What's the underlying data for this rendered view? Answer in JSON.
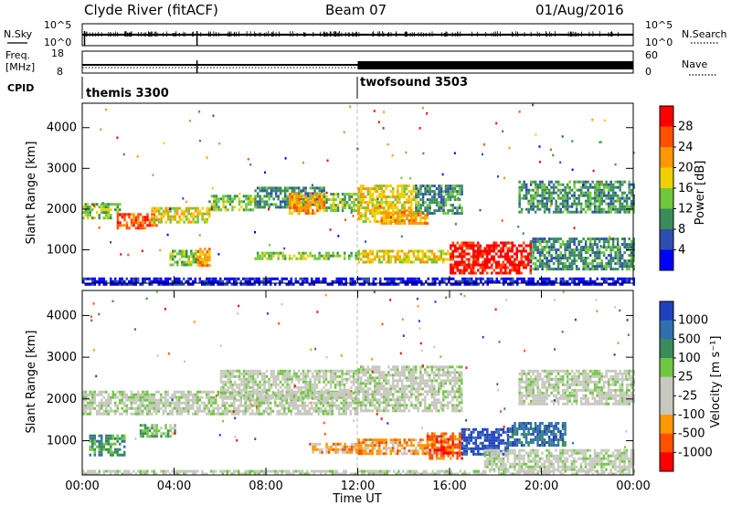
{
  "header": {
    "station": "Clyde River (fitACF)",
    "beam": "Beam 07",
    "date": "01/Aug/2016"
  },
  "top_panels": {
    "nsky_label": "N.Sky",
    "nsky_ticks": [
      "10^5",
      "10^0"
    ],
    "nsearch_label": "N.Search",
    "nsearch_ticks": [
      "10^5",
      "10^0"
    ],
    "freq_label": "Freq.",
    "freq_unit": "[MHz]",
    "freq_ticks": [
      "18",
      "8"
    ],
    "nave_label": "Nave",
    "nave_ticks": [
      "60",
      "0"
    ],
    "cpid_label": "CPID",
    "cpid_segments": [
      {
        "name": "themis 3300",
        "start_hour": 0,
        "end_hour": 12
      },
      {
        "name": "twofsound 3503",
        "start_hour": 12,
        "end_hour": 24
      }
    ]
  },
  "chart_data": [
    {
      "type": "heatmap",
      "title": "",
      "xlabel": "",
      "ylabel": "Slant Range [km]",
      "ylim": [
        180,
        4600
      ],
      "yticks": [
        "1000",
        "2000",
        "3000",
        "4000"
      ],
      "colorbar_label": "Power [dB]",
      "colorbar_ticks": [
        "4",
        "8",
        "12",
        "16",
        "20",
        "24",
        "28"
      ],
      "colors": [
        "#0000ff",
        "#2e4fb0",
        "#3a8c5a",
        "#6fc83a",
        "#f0d000",
        "#ff9800",
        "#ff5000",
        "#ff0000"
      ],
      "regions": [
        {
          "t0": 0.0,
          "t1": 1.6,
          "r0": 1750,
          "r1": 2150,
          "level": 3
        },
        {
          "t0": 1.5,
          "t1": 3.2,
          "r0": 1550,
          "r1": 1900,
          "level": 6
        },
        {
          "t0": 3.0,
          "t1": 5.5,
          "r0": 1650,
          "r1": 2050,
          "level": 4
        },
        {
          "t0": 5.5,
          "t1": 7.5,
          "r0": 1950,
          "r1": 2350,
          "level": 3
        },
        {
          "t0": 7.5,
          "t1": 10.5,
          "r0": 2050,
          "r1": 2550,
          "level": 2
        },
        {
          "t0": 10.5,
          "t1": 12.0,
          "r0": 1950,
          "r1": 2400,
          "level": 3
        },
        {
          "t0": 12.0,
          "t1": 14.5,
          "r0": 1700,
          "r1": 2600,
          "level": 4
        },
        {
          "t0": 13.0,
          "t1": 15.0,
          "r0": 1650,
          "r1": 1950,
          "level": 5
        },
        {
          "t0": 9.0,
          "t1": 10.5,
          "r0": 1900,
          "r1": 2400,
          "level": 5
        },
        {
          "t0": 14.5,
          "t1": 16.5,
          "r0": 1900,
          "r1": 2600,
          "level": 2
        },
        {
          "t0": 3.8,
          "t1": 5.2,
          "r0": 650,
          "r1": 1000,
          "level": 3
        },
        {
          "t0": 5.0,
          "t1": 5.5,
          "r0": 600,
          "r1": 1050,
          "level": 5
        },
        {
          "t0": 7.5,
          "t1": 12.0,
          "r0": 750,
          "r1": 950,
          "level": 3
        },
        {
          "t0": 12.0,
          "t1": 16.0,
          "r0": 700,
          "r1": 1000,
          "level": 4
        },
        {
          "t0": 16.0,
          "t1": 19.5,
          "r0": 400,
          "r1": 1200,
          "level": 7
        },
        {
          "t0": 19.5,
          "t1": 24.0,
          "r0": 500,
          "r1": 1300,
          "level": 2
        },
        {
          "t0": 19.0,
          "t1": 24.0,
          "r0": 1900,
          "r1": 2700,
          "level": 2
        },
        {
          "t0": 0.0,
          "t1": 24.0,
          "r0": 180,
          "r1": 320,
          "level": 0
        }
      ]
    },
    {
      "type": "heatmap",
      "title": "",
      "xlabel": "Time UT",
      "ylabel": "Slant Range [km]",
      "ylim": [
        180,
        4600
      ],
      "yticks": [
        "1000",
        "2000",
        "3000",
        "4000"
      ],
      "xticks": [
        "00:00",
        "04:00",
        "08:00",
        "12:00",
        "16:00",
        "20:00",
        "00:00"
      ],
      "colorbar_label": "Velocity [m s⁻¹]",
      "colorbar_ticks": [
        "1000",
        "500",
        "100",
        "25",
        "-25",
        "-100",
        "-500",
        "-1000"
      ],
      "colors": [
        "#2040c0",
        "#3070b0",
        "#3a8c5a",
        "#70c840",
        "#c8c8c0",
        "#c8c8c0",
        "#ff9800",
        "#ff5000",
        "#ff0000"
      ],
      "regions": [
        {
          "t0": 0.0,
          "t1": 12.0,
          "r0": 1650,
          "r1": 2200,
          "level": 4
        },
        {
          "t0": 6.0,
          "t1": 12.0,
          "r0": 2000,
          "r1": 2700,
          "level": 4
        },
        {
          "t0": 12.0,
          "t1": 16.5,
          "r0": 1700,
          "r1": 2800,
          "level": 4
        },
        {
          "t0": 19.0,
          "t1": 24.0,
          "r0": 1900,
          "r1": 2700,
          "level": 4
        },
        {
          "t0": 0.3,
          "t1": 1.8,
          "r0": 650,
          "r1": 1150,
          "level": 2
        },
        {
          "t0": 2.5,
          "t1": 4.0,
          "r0": 1100,
          "r1": 1400,
          "level": 3
        },
        {
          "t0": 10.0,
          "t1": 12.0,
          "r0": 750,
          "r1": 950,
          "level": 6
        },
        {
          "t0": 12.0,
          "t1": 16.0,
          "r0": 700,
          "r1": 1050,
          "level": 6
        },
        {
          "t0": 15.0,
          "t1": 16.5,
          "r0": 600,
          "r1": 1200,
          "level": 7
        },
        {
          "t0": 16.5,
          "t1": 18.5,
          "r0": 700,
          "r1": 1300,
          "level": 0
        },
        {
          "t0": 18.5,
          "t1": 21.0,
          "r0": 900,
          "r1": 1450,
          "level": 1
        },
        {
          "t0": 17.5,
          "t1": 24.0,
          "r0": 300,
          "r1": 800,
          "level": 4
        },
        {
          "t0": 0.0,
          "t1": 24.0,
          "r0": 180,
          "r1": 300,
          "level": 4
        }
      ]
    }
  ]
}
